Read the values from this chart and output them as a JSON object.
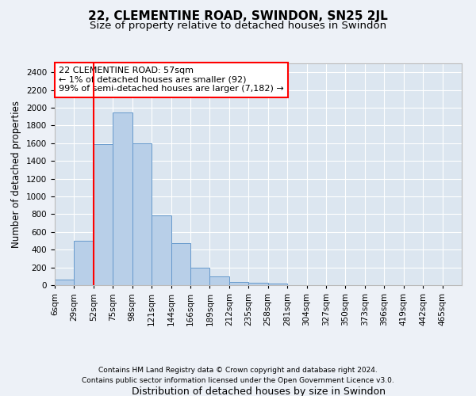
{
  "title": "22, CLEMENTINE ROAD, SWINDON, SN25 2JL",
  "subtitle": "Size of property relative to detached houses in Swindon",
  "xlabel": "Distribution of detached houses by size in Swindon",
  "ylabel": "Number of detached properties",
  "bin_labels": [
    "6sqm",
    "29sqm",
    "52sqm",
    "75sqm",
    "98sqm",
    "121sqm",
    "144sqm",
    "166sqm",
    "189sqm",
    "212sqm",
    "235sqm",
    "258sqm",
    "281sqm",
    "304sqm",
    "327sqm",
    "350sqm",
    "373sqm",
    "396sqm",
    "419sqm",
    "442sqm",
    "465sqm"
  ],
  "bar_heights": [
    60,
    500,
    1590,
    1950,
    1600,
    790,
    470,
    200,
    95,
    35,
    25,
    15,
    0,
    0,
    0,
    0,
    0,
    0,
    0,
    0,
    0
  ],
  "bar_color": "#b8cfe8",
  "bar_edge_color": "#6699cc",
  "red_line_x": 2.0,
  "annotation_text": "22 CLEMENTINE ROAD: 57sqm\n← 1% of detached houses are smaller (92)\n99% of semi-detached houses are larger (7,182) →",
  "annotation_box_color": "white",
  "annotation_box_edge": "red",
  "ylim": [
    0,
    2500
  ],
  "yticks": [
    0,
    200,
    400,
    600,
    800,
    1000,
    1200,
    1400,
    1600,
    1800,
    2000,
    2200,
    2400
  ],
  "background_color": "#edf1f7",
  "plot_background": "#dce6f0",
  "footer_line1": "Contains HM Land Registry data © Crown copyright and database right 2024.",
  "footer_line2": "Contains public sector information licensed under the Open Government Licence v3.0.",
  "title_fontsize": 11,
  "subtitle_fontsize": 9.5,
  "xlabel_fontsize": 9,
  "ylabel_fontsize": 8.5,
  "tick_fontsize": 7.5,
  "footer_fontsize": 6.5,
  "annotation_fontsize": 8
}
